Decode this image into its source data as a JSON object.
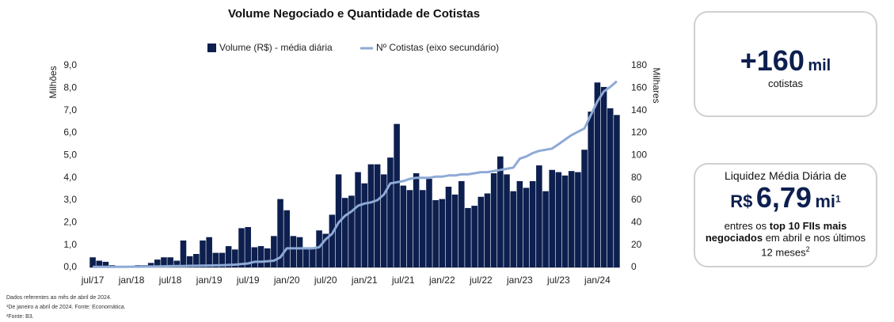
{
  "chart_data": {
    "type": "combo",
    "title": "Volume Negociado e Quantidade de Cotistas",
    "y_label": "Milhões",
    "y2_label": "Milhares",
    "categories": [
      "jul/17",
      null,
      null,
      null,
      null,
      null,
      "jan/18",
      null,
      null,
      null,
      null,
      null,
      "jul/18",
      null,
      null,
      null,
      null,
      null,
      "jan/19",
      null,
      null,
      null,
      null,
      null,
      "jul/19",
      null,
      null,
      null,
      null,
      null,
      "jan/20",
      null,
      null,
      null,
      null,
      null,
      "jul/20",
      null,
      null,
      null,
      null,
      null,
      "jan/21",
      null,
      null,
      null,
      null,
      null,
      "jul/21",
      null,
      null,
      null,
      null,
      null,
      "jan/22",
      null,
      null,
      null,
      null,
      null,
      "jul/22",
      null,
      null,
      null,
      null,
      null,
      "jan/23",
      null,
      null,
      null,
      null,
      null,
      "jul/23",
      null,
      null,
      null,
      null,
      null,
      "jan/24",
      null,
      null,
      null
    ],
    "series": [
      {
        "name": "Volume (R$) - média diária",
        "type": "bar",
        "color": "#0d1f4f",
        "values": [
          0.45,
          0.3,
          0.25,
          0.1,
          0.05,
          0.05,
          0.05,
          0.1,
          0.1,
          0.2,
          0.35,
          0.45,
          0.45,
          0.3,
          1.2,
          0.5,
          0.6,
          1.2,
          1.35,
          0.65,
          0.65,
          0.95,
          0.8,
          1.75,
          1.8,
          0.9,
          0.95,
          0.85,
          1.4,
          3.05,
          2.55,
          1.4,
          1.35,
          0.85,
          0.9,
          1.65,
          1.5,
          2.35,
          4.15,
          3.1,
          3.2,
          4.25,
          3.75,
          4.6,
          4.6,
          4.15,
          4.9,
          6.4,
          3.65,
          3.45,
          4.2,
          3.45,
          3.95,
          3.0,
          3.05,
          3.6,
          3.25,
          3.85,
          2.65,
          2.75,
          3.15,
          3.3,
          4.2,
          4.95,
          4.15,
          3.4,
          3.85,
          3.55,
          3.85,
          4.55,
          3.4,
          4.35,
          4.25,
          4.1,
          4.3,
          4.25,
          5.25,
          6.95,
          8.25,
          8.05,
          7.1,
          6.8
        ]
      },
      {
        "name": "Nº Cotistas (eixo secundário)",
        "type": "line",
        "axis": "y2",
        "color": "#8eaad6",
        "values": [
          0.5,
          0.5,
          0.5,
          0.5,
          0.5,
          0.5,
          0.6,
          0.6,
          0.7,
          0.8,
          0.9,
          1,
          1.1,
          1.2,
          1.3,
          1.4,
          1.5,
          1.6,
          1.7,
          1.8,
          2,
          2.2,
          2.5,
          3,
          3.5,
          5,
          5,
          5.5,
          6,
          9,
          17,
          17,
          17,
          17,
          17,
          18,
          25,
          30,
          40,
          46,
          50,
          55,
          57,
          58,
          60,
          65,
          75,
          76,
          77,
          79,
          80,
          80,
          80,
          81,
          81,
          82,
          82,
          83,
          83,
          84,
          85,
          85,
          86,
          87,
          88,
          89,
          97,
          99,
          102,
          104,
          105,
          106,
          110,
          114,
          118,
          121,
          124,
          136,
          148,
          157,
          161,
          166
        ]
      }
    ],
    "ylim": [
      0,
      9
    ],
    "yticks": [
      {
        "value": 0,
        "label": "0,0"
      },
      {
        "value": 1,
        "label": "1,0"
      },
      {
        "value": 2,
        "label": "2,0"
      },
      {
        "value": 3,
        "label": "3,0"
      },
      {
        "value": 4,
        "label": "4,0"
      },
      {
        "value": 5,
        "label": "5,0"
      },
      {
        "value": 6,
        "label": "6,0"
      },
      {
        "value": 7,
        "label": "7,0"
      },
      {
        "value": 8,
        "label": "8,0"
      },
      {
        "value": 9,
        "label": "9,0"
      }
    ],
    "y2lim": [
      0,
      180
    ],
    "y2ticks": [
      0,
      20,
      40,
      60,
      80,
      100,
      120,
      140,
      160,
      180
    ],
    "legend": "top",
    "grid": false
  },
  "cards": [
    {
      "headline": "+160",
      "headline_unit": "mil",
      "caption": "cotistas"
    },
    {
      "intro": "Liquidez Média Diária de",
      "prefix": "R$",
      "value": "6,79",
      "unit": "mi",
      "sup": "1",
      "text_a": "entres os",
      "text_bold": "top 10 FIIs mais negociados",
      "text_b": "em abril e nos últimos 12 meses",
      "text_sup": "2"
    }
  ],
  "footnotes": [
    "Dados referentes ao mês de abril de 2024.",
    "¹De janeiro a abril de 2024. Fonte: Economática.",
    "²Fonte: B3."
  ]
}
